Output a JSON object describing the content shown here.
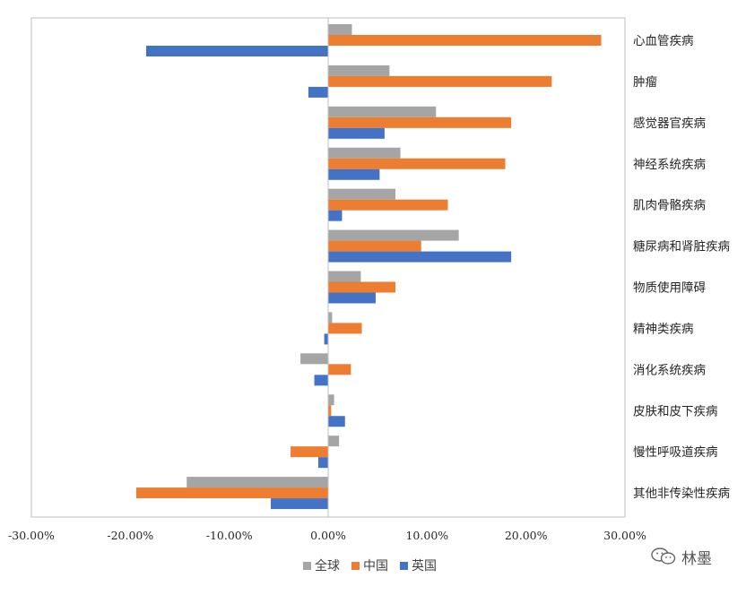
{
  "chart_data": {
    "type": "bar",
    "orientation": "horizontal",
    "categories": [
      "心血管疾病",
      "肿瘤",
      "感觉器官疾病",
      "神经系统疾病",
      "肌肉骨骼疾病",
      "糖尿病和肾脏疾病",
      "物质使用障碍",
      "精神类疾病",
      "消化系统疾病",
      "皮肤和皮下疾病",
      "慢性呼吸道疾病",
      "其他非传染性疾病"
    ],
    "series": [
      {
        "name": "全球",
        "color": "#a5a5a5",
        "values": [
          2.4,
          6.2,
          10.9,
          7.3,
          6.8,
          13.2,
          3.3,
          0.4,
          -2.8,
          0.6,
          1.1,
          -14.3
        ]
      },
      {
        "name": "中国",
        "color": "#ed7d31",
        "values": [
          27.6,
          22.6,
          18.5,
          17.9,
          12.1,
          9.4,
          6.8,
          3.4,
          2.3,
          0.3,
          -3.8,
          -19.4
        ]
      },
      {
        "name": "英国",
        "color": "#4472c4",
        "values": [
          -18.4,
          -2.0,
          5.7,
          5.2,
          1.4,
          18.5,
          4.8,
          -0.4,
          -1.4,
          1.7,
          -1.0,
          -5.8
        ]
      }
    ],
    "x_ticks": [
      "-30.00%",
      "-20.00%",
      "-10.00%",
      "0.00%",
      "10.00%",
      "20.00%",
      "30.00%"
    ],
    "xlim": [
      -30,
      30
    ],
    "legend_position": "bottom",
    "grid": false
  },
  "watermark": {
    "text": "林墨",
    "icon": "wechat-icon"
  }
}
